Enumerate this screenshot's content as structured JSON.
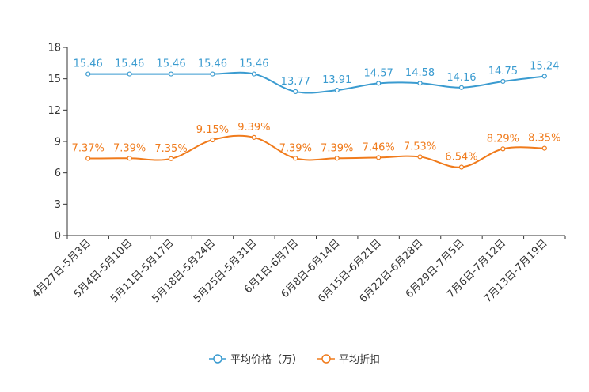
{
  "chart_data": {
    "type": "line",
    "title": "",
    "xlabel": "",
    "ylabel": "",
    "ylim": [
      0,
      18
    ],
    "yticks": [
      0,
      3,
      6,
      9,
      12,
      15,
      18
    ],
    "grid": false,
    "legend_position": "bottom-center",
    "categories": [
      "4月27日-5月3日",
      "5月4日-5月10日",
      "5月11日-5月17日",
      "5月18日-5月24日",
      "5月25日-5月31日",
      "6月1日-6月7日",
      "6月8日-6月14日",
      "6月15日-6月21日",
      "6月22日-6月28日",
      "6月29日-7月5日",
      "7月6日-7月12日",
      "7月13日-7月19日"
    ],
    "series": [
      {
        "name": "平均价格（万）",
        "color": "#3a9bd0",
        "values": [
          15.46,
          15.46,
          15.46,
          15.46,
          15.46,
          13.77,
          13.91,
          14.57,
          14.58,
          14.16,
          14.75,
          15.24
        ],
        "labels": [
          "15.46",
          "15.46",
          "15.46",
          "15.46",
          "15.46",
          "13.77",
          "13.91",
          "14.57",
          "14.58",
          "14.16",
          "14.75",
          "15.24"
        ]
      },
      {
        "name": "平均折扣",
        "color": "#f07b1c",
        "values": [
          7.37,
          7.39,
          7.35,
          9.15,
          9.39,
          7.39,
          7.39,
          7.46,
          7.53,
          6.54,
          8.29,
          8.35
        ],
        "labels": [
          "7.37%",
          "7.39%",
          "7.35%",
          "9.15%",
          "9.39%",
          "7.39%",
          "7.39%",
          "7.46%",
          "7.53%",
          "6.54%",
          "8.29%",
          "8.35%"
        ]
      }
    ]
  }
}
